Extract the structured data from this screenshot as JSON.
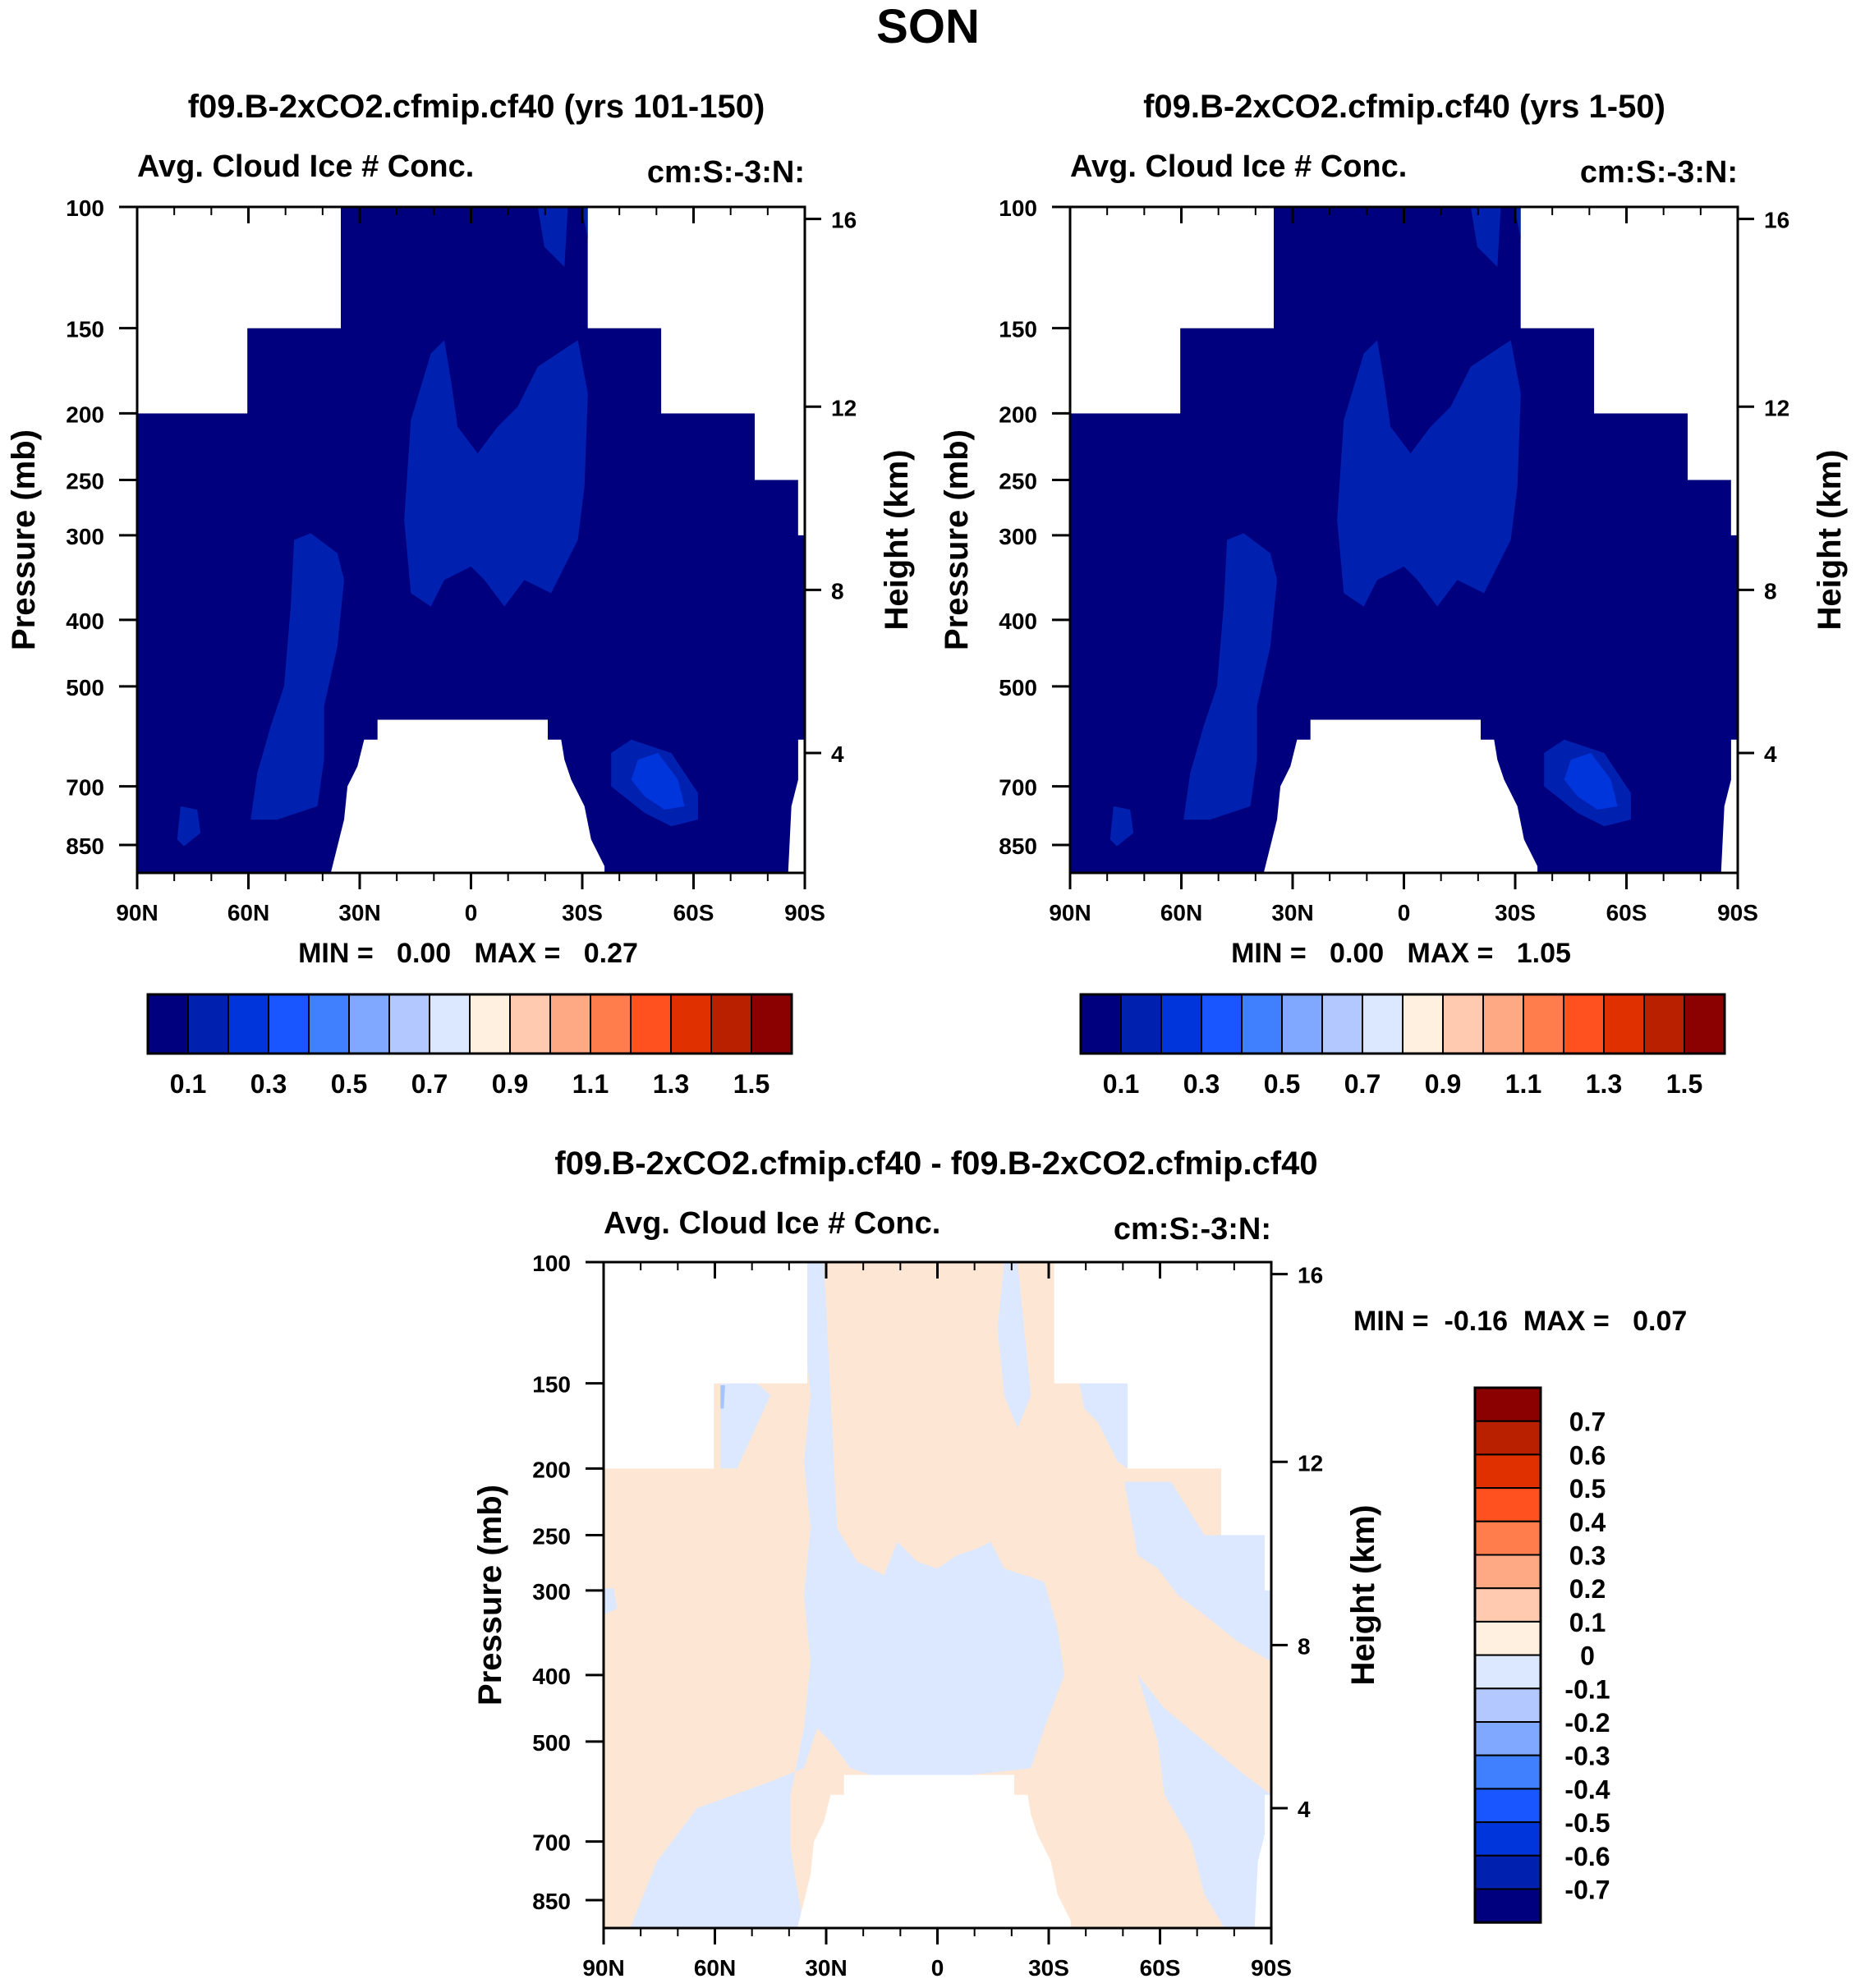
{
  "page_title": "SON",
  "colors": {
    "blue": [
      "#00007f",
      "#0020b0",
      "#0035dc",
      "#1a56ff",
      "#4080ff",
      "#80a8ff",
      "#b2c8ff",
      "#dbe8ff"
    ],
    "red": [
      "#fff0e0",
      "#ffcab0",
      "#ffa884",
      "#ff7c4c",
      "#ff5020",
      "#e03000",
      "#b82000",
      "#8b0000"
    ],
    "diff_low_fill": "#dbe8ff",
    "diff_high_fill": "#fde7d4",
    "diff_accent": "#a8c4ff"
  },
  "chart_data": [
    {
      "type": "contour",
      "title": "f09.B-2xCO2.cfmip.cf40 (yrs 101-150)",
      "left_label": "Avg. Cloud Ice # Conc.",
      "right_label": "cm:S:-3:N:",
      "ylabel": "Pressure (mb)",
      "ylabel_right": "Height (km)",
      "x_ticks": [
        "90N",
        "60N",
        "30N",
        "0",
        "30S",
        "60S",
        "90S"
      ],
      "y_ticks": [
        "100",
        "150",
        "200",
        "250",
        "300",
        "400",
        "500",
        "700",
        "850"
      ],
      "y_right_ticks": [
        "16",
        "12",
        "8",
        "4"
      ],
      "stats": "MIN =   0.00   MAX =   0.27",
      "colorbar_labels": [
        "0.1",
        "0.3",
        "0.5",
        "0.7",
        "0.9",
        "1.1",
        "1.3",
        "1.5"
      ],
      "levels": [
        0.1,
        0.2,
        0.3,
        0.4,
        0.5,
        0.6,
        0.7,
        0.8,
        0.9,
        1.0,
        1.1,
        1.2,
        1.3,
        1.4,
        1.5
      ],
      "min": 0.0,
      "max": 0.27
    },
    {
      "type": "contour",
      "title": "f09.B-2xCO2.cfmip.cf40 (yrs 1-50)",
      "left_label": "Avg. Cloud Ice # Conc.",
      "right_label": "cm:S:-3:N:",
      "ylabel": "Pressure (mb)",
      "ylabel_right": "Height (km)",
      "x_ticks": [
        "90N",
        "60N",
        "30N",
        "0",
        "30S",
        "60S",
        "90S"
      ],
      "y_ticks": [
        "100",
        "150",
        "200",
        "250",
        "300",
        "400",
        "500",
        "700",
        "850"
      ],
      "y_right_ticks": [
        "16",
        "12",
        "8",
        "4"
      ],
      "stats": "MIN =   0.00   MAX =   1.05",
      "colorbar_labels": [
        "0.1",
        "0.3",
        "0.5",
        "0.7",
        "0.9",
        "1.1",
        "1.3",
        "1.5"
      ],
      "levels": [
        0.1,
        0.2,
        0.3,
        0.4,
        0.5,
        0.6,
        0.7,
        0.8,
        0.9,
        1.0,
        1.1,
        1.2,
        1.3,
        1.4,
        1.5
      ],
      "min": 0.0,
      "max": 1.05
    },
    {
      "type": "contour",
      "title": "f09.B-2xCO2.cfmip.cf40 - f09.B-2xCO2.cfmip.cf40",
      "left_label": "Avg. Cloud Ice # Conc.",
      "right_label": "cm:S:-3:N:",
      "ylabel": "Pressure (mb)",
      "ylabel_right": "Height (km)",
      "x_ticks": [
        "90N",
        "60N",
        "30N",
        "0",
        "30S",
        "60S",
        "90S"
      ],
      "y_ticks": [
        "100",
        "150",
        "200",
        "250",
        "300",
        "400",
        "500",
        "700",
        "850"
      ],
      "y_right_ticks": [
        "16",
        "12",
        "8",
        "4"
      ],
      "stats": "MIN =  -0.16  MAX =   0.07",
      "colorbar_labels": [
        "0.7",
        "0.6",
        "0.5",
        "0.4",
        "0.3",
        "0.2",
        "0.1",
        "0",
        "-0.1",
        "-0.2",
        "-0.3",
        "-0.4",
        "-0.5",
        "-0.6",
        "-0.7"
      ],
      "min": -0.16,
      "max": 0.07
    }
  ]
}
